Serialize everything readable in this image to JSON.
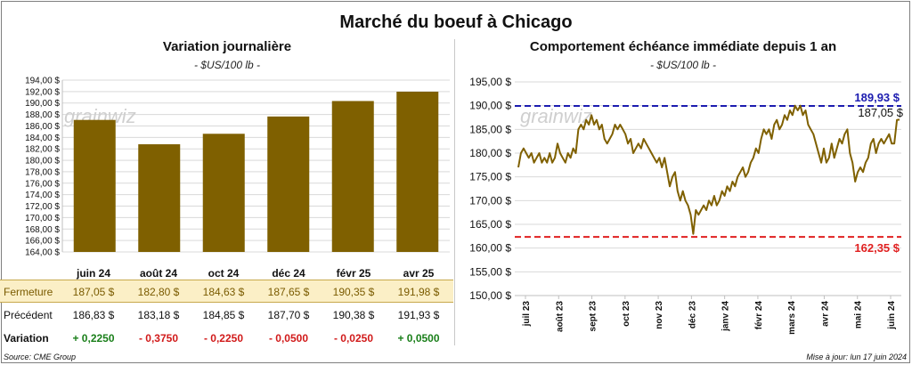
{
  "page": {
    "title": "Marché du boeuf à Chicago",
    "source": "Source: CME Group",
    "updated": "Mise à jour: lun 17 juin 2024",
    "watermark": "grainwiz"
  },
  "left": {
    "title": "Variation  journalière",
    "unit": "- $US/100 lb -"
  },
  "right": {
    "title": "Comportement  échéance immédiate depuis 1 an",
    "unit": "- $US/100 lb -"
  },
  "table": {
    "contracts": [
      "juin 24",
      "août 24",
      "oct 24",
      "déc 24",
      "févr 25",
      "avr 25"
    ],
    "fermeture_label": "Fermeture",
    "fermeture": [
      "187,05  $",
      "182,80  $",
      "184,63  $",
      "187,65  $",
      "190,35  $",
      "191,98  $"
    ],
    "precedent_label": "Précédent",
    "precedent": [
      "186,83  $",
      "183,18  $",
      "184,85  $",
      "187,70  $",
      "190,38  $",
      "191,93  $"
    ],
    "variation_label": "Variation",
    "variation": [
      "+ 0,2250",
      "- 0,3750",
      "- 0,2250",
      "- 0,0500",
      "- 0,0250",
      "+ 0,0500"
    ],
    "variation_sign": [
      "pos",
      "neg",
      "neg",
      "neg",
      "neg",
      "pos"
    ]
  },
  "chart_data": [
    {
      "type": "bar",
      "title": "Variation  journalière",
      "categories": [
        "juin 24",
        "août 24",
        "oct 24",
        "déc 24",
        "févr 25",
        "avr 25"
      ],
      "values": [
        187.05,
        182.8,
        184.63,
        187.65,
        190.35,
        191.98
      ],
      "ylim": [
        164,
        194
      ],
      "y_ticks": [
        "164,00 $",
        "166,00 $",
        "168,00 $",
        "170,00 $",
        "172,00 $",
        "174,00 $",
        "176,00 $",
        "178,00 $",
        "180,00 $",
        "182,00 $",
        "184,00 $",
        "186,00 $",
        "188,00 $",
        "190,00 $",
        "192,00 $",
        "194,00 $"
      ],
      "bar_color": "#7f6000",
      "grid": true
    },
    {
      "type": "line",
      "title": "Comportement  échéance immédiate depuis 1 an",
      "ylim": [
        150,
        195
      ],
      "y_ticks": [
        "150,00 $",
        "155,00 $",
        "160,00 $",
        "165,00 $",
        "170,00 $",
        "175,00 $",
        "180,00 $",
        "185,00 $",
        "190,00 $",
        "195,00 $"
      ],
      "x_ticks": [
        "juil 23",
        "août 23",
        "sept 23",
        "oct 23",
        "nov 23",
        "déc 23",
        "janv 24",
        "févr 24",
        "mars 24",
        "avr 24",
        "mai 24",
        "juin 24"
      ],
      "series": [
        {
          "color": "#7f6000",
          "values": [
            177,
            180,
            181,
            180,
            179,
            180,
            178,
            179,
            180,
            178,
            179,
            178,
            180,
            178,
            179,
            182,
            180,
            179,
            178,
            180,
            179,
            181,
            180,
            185,
            186,
            185,
            187,
            186,
            188,
            186,
            187,
            185,
            186,
            183,
            182,
            183,
            184,
            186,
            185,
            186,
            185,
            184,
            182,
            183,
            180,
            181,
            182,
            181,
            183,
            182,
            181,
            180,
            179,
            178,
            179,
            177,
            179,
            176,
            173,
            175,
            176,
            172,
            170,
            172,
            170,
            169,
            167,
            163,
            168,
            167,
            168,
            169,
            168,
            170,
            169,
            171,
            169,
            170,
            172,
            171,
            173,
            172,
            174,
            173,
            175,
            176,
            177,
            175,
            176,
            178,
            179,
            181,
            180,
            183,
            185,
            184,
            185,
            183,
            186,
            187,
            185,
            186,
            188,
            187,
            189,
            188,
            190,
            189,
            190,
            188,
            189,
            186,
            185,
            184,
            182,
            180,
            178,
            181,
            178,
            179,
            182,
            179,
            181,
            183,
            182,
            184,
            185,
            180,
            178,
            174,
            176,
            177,
            176,
            178,
            179,
            182,
            183,
            180,
            182,
            183,
            182,
            183,
            184,
            182,
            182,
            187,
            187.05
          ]
        }
      ],
      "ref_lines": [
        {
          "value": 189.93,
          "label": "189,93 $",
          "color": "#1c1cb0"
        },
        {
          "value": 162.35,
          "label": "162,35 $",
          "color": "#e02020"
        }
      ],
      "last_label": "187,05 $",
      "grid": true
    }
  ]
}
